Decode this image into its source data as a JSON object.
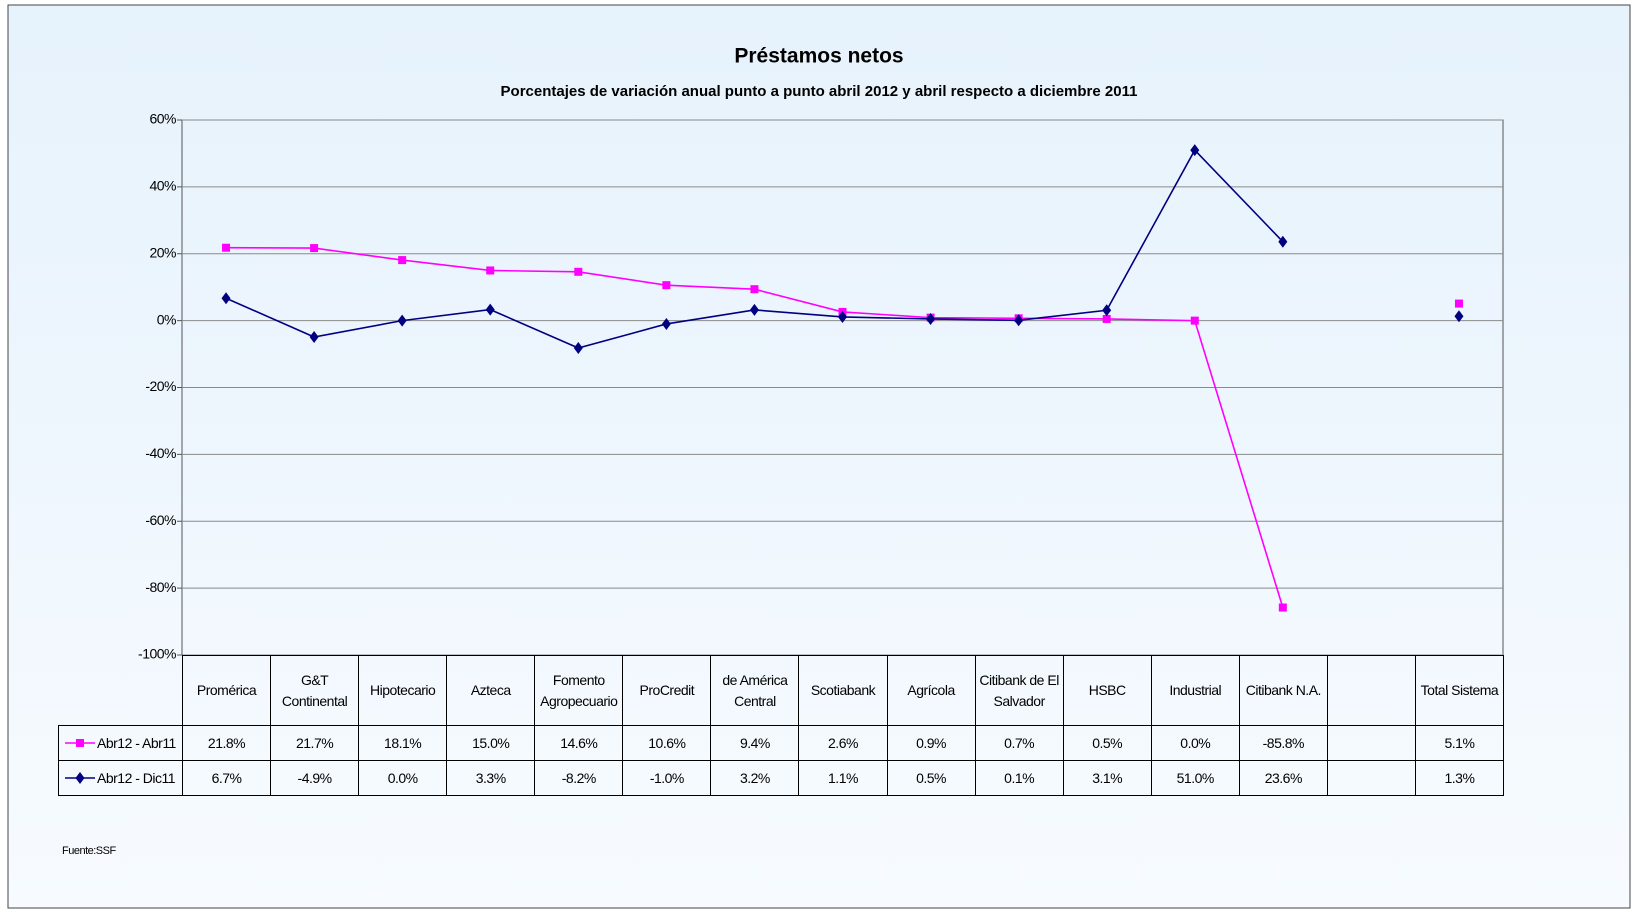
{
  "chart_data": {
    "type": "line",
    "title": "Préstamos netos",
    "subtitle": "Porcentajes de variación anual punto a punto abril 2012 y abril respecto a diciembre 2011",
    "categories": [
      "Promérica",
      "G&T Continental",
      "Hipotecario",
      "Azteca",
      "Fomento Agropecuario",
      "ProCredit",
      "de América Central",
      "Scotiabank",
      "Agrícola",
      "Citibank de El Salvador",
      "HSBC",
      "Industrial",
      "Citibank N.A.",
      null,
      "Total Sistema"
    ],
    "series": [
      {
        "name": "Abr12 - Abr11",
        "color": "#ff00ff",
        "marker": "square",
        "values": [
          21.8,
          21.7,
          18.1,
          15.0,
          14.6,
          10.6,
          9.4,
          2.6,
          0.9,
          0.7,
          0.5,
          0.0,
          -85.8,
          null,
          5.1
        ],
        "value_labels": [
          "21.8%",
          "21.7%",
          "18.1%",
          "15.0%",
          "14.6%",
          "10.6%",
          "9.4%",
          "2.6%",
          "0.9%",
          "0.7%",
          "0.5%",
          "0.0%",
          "-85.8%",
          null,
          "5.1%"
        ]
      },
      {
        "name": "Abr12 - Dic11",
        "color": "#000080",
        "marker": "diamond",
        "values": [
          6.7,
          -4.9,
          0.0,
          3.3,
          -8.2,
          -1.0,
          3.2,
          1.1,
          0.5,
          0.1,
          3.1,
          51.0,
          23.6,
          null,
          1.3
        ],
        "value_labels": [
          "6.7%",
          "-4.9%",
          "0.0%",
          "3.3%",
          "-8.2%",
          "-1.0%",
          "3.2%",
          "1.1%",
          "0.5%",
          "0.1%",
          "3.1%",
          "51.0%",
          "23.6%",
          null,
          "1.3%"
        ]
      }
    ],
    "ylim": [
      -100,
      60
    ],
    "yticks": [
      {
        "value": -100,
        "label": "-100%"
      },
      {
        "value": -80,
        "label": "-80%"
      },
      {
        "value": -60,
        "label": "-60%"
      },
      {
        "value": -40,
        "label": "-40%"
      },
      {
        "value": -20,
        "label": "-20%"
      },
      {
        "value": 0,
        "label": "0%"
      },
      {
        "value": 20,
        "label": "20%"
      },
      {
        "value": 40,
        "label": "40%"
      },
      {
        "value": 60,
        "label": "60%"
      }
    ],
    "grid": true,
    "source": "Fuente:SSF"
  }
}
